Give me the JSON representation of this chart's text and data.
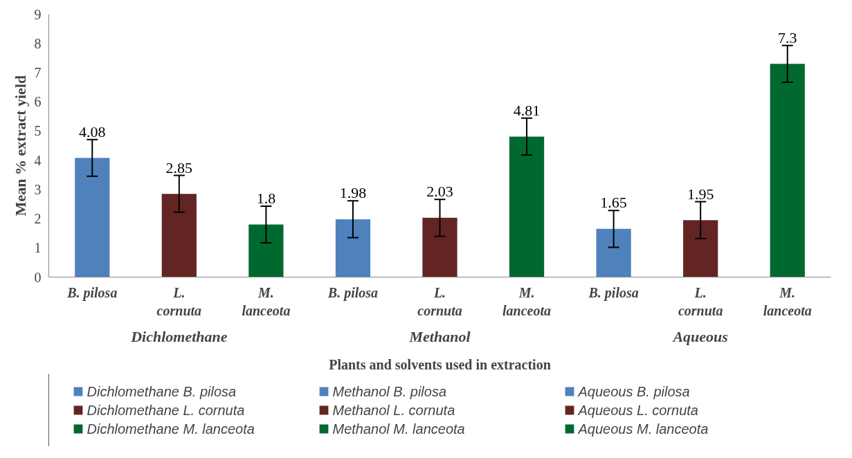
{
  "chart_data": {
    "type": "bar",
    "xlabel": "Plants and solvents used in extraction",
    "ylabel": "Mean % extract yield",
    "categories": [
      "B. pilosa",
      "L. cornuta",
      "M. lanceota",
      "B. pilosa",
      "L. cornuta",
      "M. lanceota",
      "B. pilosa",
      "L. cornuta",
      "M. lanceota"
    ],
    "annotations": [
      "Dichlomethane",
      "Methanol",
      "Aqueous"
    ],
    "series": [
      {
        "name": "Dichlomethane B. pilosa",
        "color": "#4f81bd",
        "values": [
          4.08,
          null,
          null,
          null,
          null,
          null,
          null,
          null,
          null
        ],
        "errors": [
          0.63,
          null,
          null,
          null,
          null,
          null,
          null,
          null,
          null
        ]
      },
      {
        "name": "Dichlomethane L. cornuta",
        "color": "#632523",
        "values": [
          null,
          2.85,
          null,
          null,
          null,
          null,
          null,
          null,
          null
        ],
        "errors": [
          null,
          0.63,
          null,
          null,
          null,
          null,
          null,
          null,
          null
        ]
      },
      {
        "name": "Dichlomethane M. lanceota",
        "color": "#00692f",
        "values": [
          null,
          null,
          1.8,
          null,
          null,
          null,
          null,
          null,
          null
        ],
        "errors": [
          null,
          null,
          0.63,
          null,
          null,
          null,
          null,
          null,
          null
        ]
      },
      {
        "name": "Methanol B. pilosa",
        "color": "#4f81bd",
        "values": [
          null,
          null,
          null,
          1.98,
          null,
          null,
          null,
          null,
          null
        ],
        "errors": [
          null,
          null,
          null,
          0.63,
          null,
          null,
          null,
          null,
          null
        ]
      },
      {
        "name": "Methanol L. cornuta",
        "color": "#632523",
        "values": [
          null,
          null,
          null,
          null,
          2.03,
          null,
          null,
          null,
          null
        ],
        "errors": [
          null,
          null,
          null,
          null,
          0.63,
          null,
          null,
          null,
          null
        ]
      },
      {
        "name": "Methanol M. lanceota",
        "color": "#00692f",
        "values": [
          null,
          null,
          null,
          null,
          null,
          4.81,
          null,
          null,
          null
        ],
        "errors": [
          null,
          null,
          null,
          null,
          null,
          0.63,
          null,
          null,
          null
        ]
      },
      {
        "name": "Aqueous B. pilosa",
        "color": "#4f81bd",
        "values": [
          null,
          null,
          null,
          null,
          null,
          null,
          1.65,
          null,
          null
        ],
        "errors": [
          null,
          null,
          null,
          null,
          null,
          null,
          0.63,
          null,
          null
        ]
      },
      {
        "name": "Aqueous L. cornuta",
        "color": "#632523",
        "values": [
          null,
          null,
          null,
          null,
          null,
          null,
          null,
          1.95,
          null
        ],
        "errors": [
          null,
          null,
          null,
          null,
          null,
          null,
          null,
          0.63,
          null
        ]
      },
      {
        "name": "Aqueous M. lanceota",
        "color": "#00692f",
        "values": [
          null,
          null,
          null,
          null,
          null,
          null,
          null,
          null,
          7.3
        ],
        "errors": [
          null,
          null,
          null,
          null,
          null,
          null,
          null,
          null,
          0.63
        ]
      }
    ],
    "ylim": [
      0,
      9
    ],
    "yticks": [
      0,
      1,
      2,
      3,
      4,
      5,
      6,
      7,
      8,
      9
    ],
    "grid": false,
    "data_labels": true,
    "legend": "bottom"
  }
}
